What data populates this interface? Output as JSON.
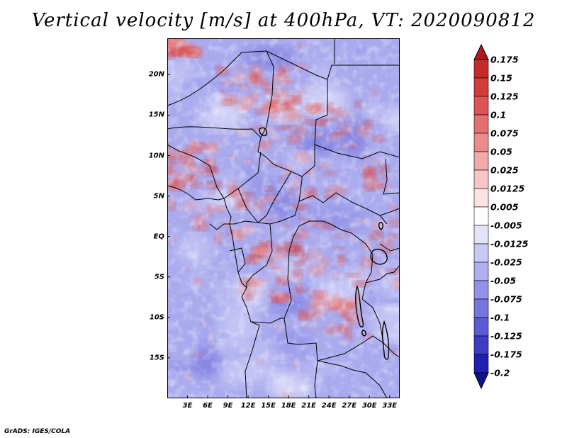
{
  "title": "Vertical velocity [m/s] at 400hPa, VT: 2020090812",
  "credit": "GrADS: IGES/COLA",
  "map": {
    "lat_labels": [
      "20N",
      "15N",
      "10N",
      "5N",
      "EQ",
      "5S",
      "10S",
      "15S"
    ],
    "lat_values": [
      20,
      15,
      10,
      5,
      0,
      -5,
      -10,
      -15
    ],
    "lon_labels": [
      "3E",
      "6E",
      "9E",
      "12E",
      "15E",
      "18E",
      "21E",
      "24E",
      "27E",
      "30E",
      "33E"
    ],
    "lon_values": [
      3,
      6,
      9,
      12,
      15,
      18,
      21,
      24,
      27,
      30,
      33
    ],
    "lon_range": [
      0,
      34.5
    ],
    "lat_range": [
      -20,
      24.5
    ]
  },
  "colorbar": {
    "levels": [
      "0.175",
      "0.15",
      "0.125",
      "0.1",
      "0.075",
      "0.05",
      "0.025",
      "0.0125",
      "0.005",
      "-0.005",
      "-0.0125",
      "-0.025",
      "-0.05",
      "-0.075",
      "-0.1",
      "-0.125",
      "-0.175",
      "-0.2"
    ],
    "colors": [
      "#b0171f",
      "#c62a2a",
      "#d23c3c",
      "#dc5454",
      "#e36f6f",
      "#ea8c8c",
      "#f1aaaa",
      "#f6c6c6",
      "#fae3e3",
      "#ffffff",
      "#e3e3fa",
      "#c9c9f6",
      "#aeaef0",
      "#9292e8",
      "#7676df",
      "#5a5ad4",
      "#3c3cc4",
      "#2020b0",
      "#12128f"
    ]
  }
}
